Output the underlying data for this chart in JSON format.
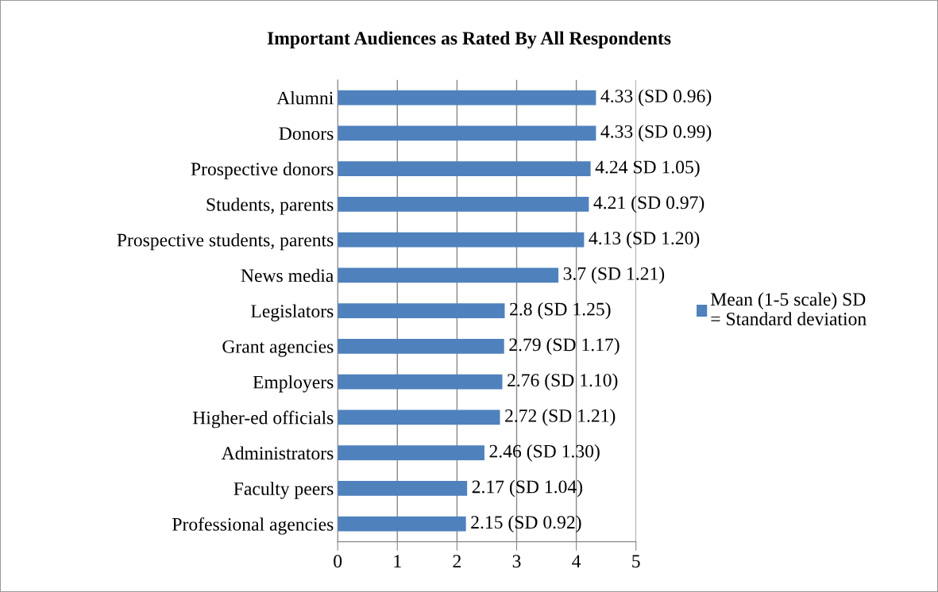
{
  "chart_data": {
    "type": "bar",
    "orientation": "horizontal",
    "title": "Important Audiences as Rated By All Respondents",
    "categories": [
      "Alumni",
      "Donors",
      "Prospective donors",
      "Students, parents",
      "Prospective students, parents",
      "News media",
      "Legislators",
      "Grant agencies",
      "Employers",
      "Higher-ed officials",
      "Administrators",
      "Faculty peers",
      "Professional agencies"
    ],
    "series": [
      {
        "name": "Mean (1-5 scale) SD = Standard deviation",
        "color": "#4f81bd",
        "values": [
          4.33,
          4.33,
          4.24,
          4.21,
          4.13,
          3.7,
          2.8,
          2.79,
          2.76,
          2.72,
          2.46,
          2.17,
          2.15
        ],
        "value_labels": [
          "4.33 (SD 0.96)",
          "4.33 (SD 0.99)",
          "4.24 SD 1.05)",
          "4.21 (SD 0.97)",
          "4.13 (SD 1.20)",
          "3.7 (SD 1.21)",
          "2.8 (SD 1.25)",
          "2.79 (SD 1.17)",
          "2.76 (SD 1.10)",
          "2.72 (SD 1.21)",
          "2.46 (SD 1.30)",
          "2.17 (SD 1.04)",
          "2.15 (SD 0.92)"
        ]
      }
    ],
    "xlim": [
      0,
      5
    ],
    "xticks": [
      0,
      1,
      2,
      3,
      4,
      5
    ],
    "grid": "x",
    "legend": "right"
  }
}
